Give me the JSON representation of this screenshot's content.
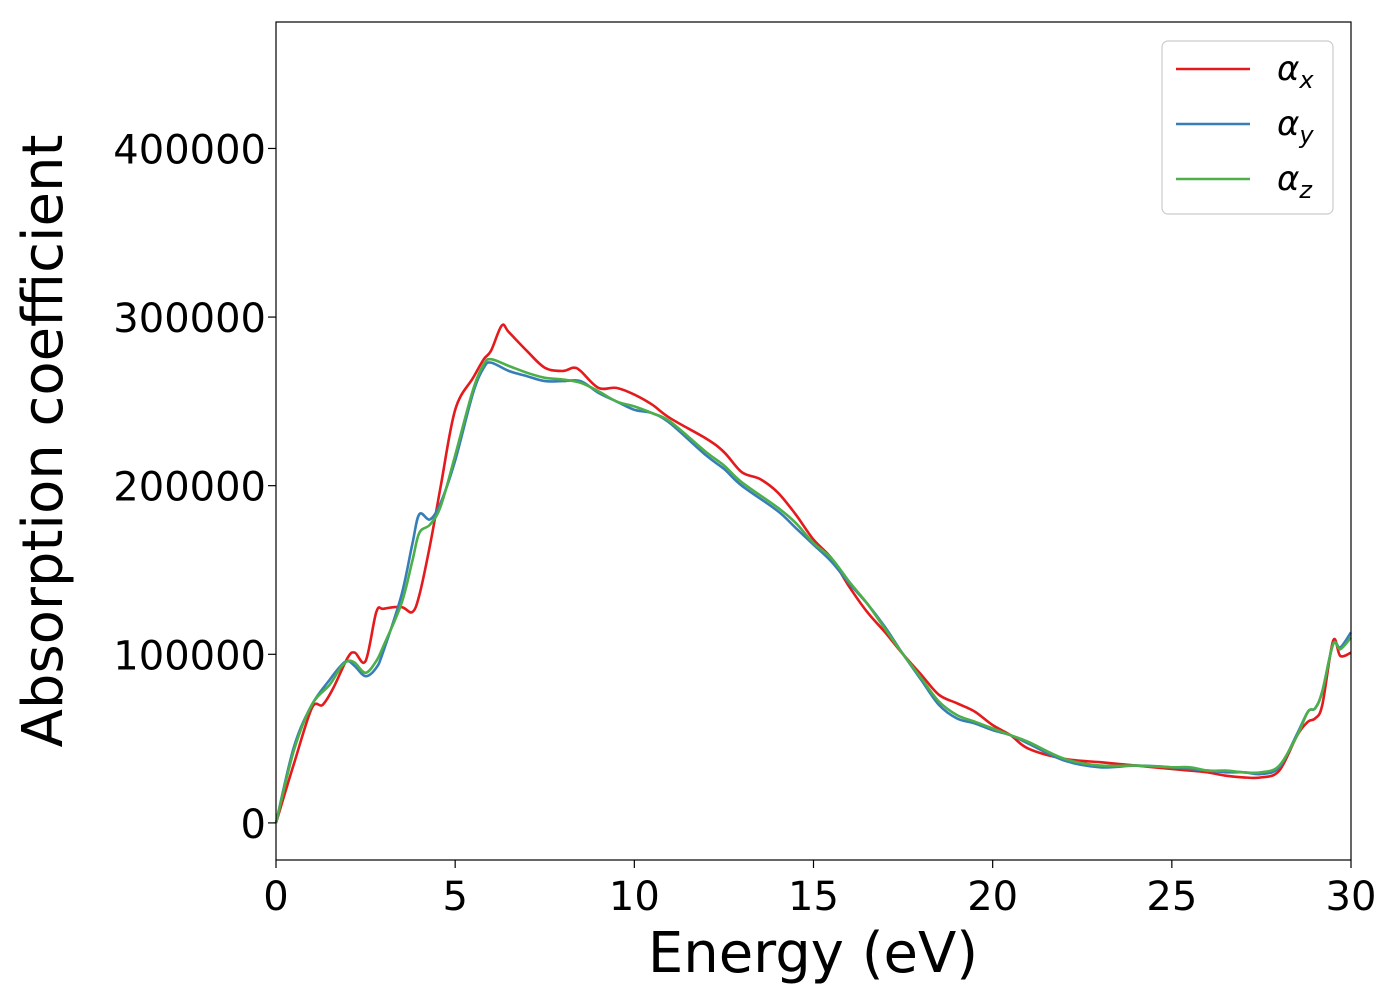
{
  "chart_data": {
    "type": "line",
    "xlabel": "Energy (eV)",
    "ylabel": "Absorption coefficient",
    "xlim": [
      0,
      30
    ],
    "ylim": [
      -22000,
      475000
    ],
    "xticks": [
      0,
      5,
      10,
      15,
      20,
      25,
      30
    ],
    "xtick_labels": [
      "0",
      "5",
      "10",
      "15",
      "20",
      "25",
      "30"
    ],
    "yticks": [
      0,
      100000,
      200000,
      300000,
      400000
    ],
    "ytick_labels": [
      "0",
      "100000",
      "200000",
      "300000",
      "400000"
    ],
    "grid": false,
    "legend_position": "top-right",
    "series": [
      {
        "name": "α",
        "subscript": "x",
        "color": "#e41a1c",
        "x": [
          0,
          0.5,
          1.0,
          1.3,
          1.6,
          2.0,
          2.2,
          2.5,
          2.8,
          3.0,
          3.5,
          3.8,
          4.0,
          4.3,
          4.6,
          5.0,
          5.5,
          5.8,
          6.0,
          6.3,
          6.5,
          7.0,
          7.5,
          8.0,
          8.3,
          8.5,
          9.0,
          9.5,
          10.0,
          10.5,
          11.0,
          12.0,
          12.5,
          13.0,
          13.5,
          14.0,
          14.5,
          15.0,
          15.5,
          16.0,
          16.5,
          17.0,
          17.5,
          18.0,
          18.5,
          19.0,
          19.5,
          20.0,
          20.5,
          21.0,
          22.0,
          23.0,
          24.0,
          25.0,
          25.5,
          26.0,
          26.5,
          27.0,
          27.5,
          28.0,
          28.5,
          28.8,
          29.0,
          29.2,
          29.5,
          29.7,
          30.0
        ],
        "y": [
          0,
          35000,
          68000,
          70000,
          80000,
          98000,
          101000,
          96000,
          125000,
          127000,
          128000,
          125000,
          135000,
          165000,
          200000,
          245000,
          264000,
          275000,
          280000,
          295000,
          291000,
          280000,
          270000,
          268000,
          270000,
          268000,
          258000,
          258000,
          254000,
          248000,
          240000,
          228000,
          220000,
          208000,
          204000,
          196000,
          183000,
          168000,
          157000,
          140000,
          125000,
          113000,
          100000,
          88000,
          76000,
          71000,
          66000,
          58000,
          52000,
          44000,
          38000,
          36000,
          34000,
          32000,
          31000,
          30000,
          28000,
          27000,
          27000,
          31000,
          52000,
          60000,
          62000,
          70000,
          108000,
          99000,
          101000
        ]
      },
      {
        "name": "α",
        "subscript": "y",
        "color": "#377eb8",
        "x": [
          0,
          0.5,
          1.0,
          1.5,
          1.8,
          2.0,
          2.2,
          2.5,
          2.8,
          3.0,
          3.5,
          3.8,
          4.0,
          4.3,
          4.6,
          5.0,
          5.5,
          5.8,
          6.0,
          6.5,
          7.0,
          7.5,
          8.0,
          8.5,
          9.0,
          9.5,
          10.0,
          10.5,
          11.0,
          12.0,
          12.5,
          13.0,
          14.0,
          14.5,
          15.0,
          15.5,
          16.0,
          16.5,
          17.0,
          17.5,
          18.0,
          18.5,
          19.0,
          19.5,
          20.0,
          20.5,
          21.0,
          22.0,
          23.0,
          24.0,
          25.0,
          25.5,
          26.0,
          26.5,
          27.0,
          27.5,
          28.0,
          28.5,
          28.8,
          29.0,
          29.2,
          29.5,
          29.7,
          30.0
        ],
        "y": [
          0,
          45000,
          70000,
          85000,
          93000,
          96000,
          93000,
          87000,
          92000,
          102000,
          135000,
          165000,
          183000,
          180000,
          190000,
          215000,
          255000,
          270000,
          273000,
          268000,
          265000,
          262000,
          262000,
          262000,
          255000,
          250000,
          245000,
          243000,
          237000,
          218000,
          210000,
          200000,
          185000,
          175000,
          165000,
          155000,
          142000,
          130000,
          116000,
          100000,
          85000,
          70000,
          62000,
          59000,
          55000,
          52000,
          47000,
          37000,
          33000,
          34000,
          33000,
          32000,
          31000,
          30000,
          30000,
          29000,
          33000,
          53000,
          66000,
          68000,
          78000,
          106000,
          104000,
          113000
        ]
      },
      {
        "name": "α",
        "subscript": "z",
        "color": "#4daf4a",
        "x": [
          0,
          0.5,
          1.0,
          1.5,
          1.8,
          2.0,
          2.2,
          2.5,
          2.8,
          3.0,
          3.5,
          3.8,
          4.0,
          4.3,
          4.6,
          5.0,
          5.5,
          5.8,
          6.0,
          6.5,
          7.0,
          7.5,
          8.0,
          8.5,
          9.0,
          9.5,
          10.0,
          10.5,
          11.0,
          12.0,
          12.5,
          13.0,
          14.0,
          14.5,
          15.0,
          15.5,
          16.0,
          16.5,
          17.0,
          17.5,
          18.0,
          18.5,
          19.0,
          19.5,
          20.0,
          20.5,
          21.0,
          22.0,
          23.0,
          24.0,
          25.0,
          25.5,
          26.0,
          26.5,
          27.0,
          27.5,
          28.0,
          28.5,
          28.8,
          29.0,
          29.2,
          29.5,
          29.7,
          30.0
        ],
        "y": [
          0,
          43000,
          70000,
          82000,
          92000,
          96000,
          95000,
          89000,
          96000,
          105000,
          130000,
          155000,
          172000,
          177000,
          188000,
          218000,
          257000,
          272000,
          275000,
          271000,
          267000,
          264000,
          263000,
          261000,
          256000,
          250000,
          247000,
          243000,
          238000,
          220000,
          212000,
          202000,
          187000,
          178000,
          166000,
          157000,
          143000,
          130000,
          115000,
          100000,
          86000,
          72000,
          64000,
          60000,
          56000,
          52000,
          48000,
          38000,
          34000,
          34000,
          33000,
          33000,
          31000,
          31000,
          30000,
          30000,
          34000,
          52000,
          66000,
          68000,
          78000,
          106000,
          103000,
          110000
        ]
      }
    ]
  }
}
